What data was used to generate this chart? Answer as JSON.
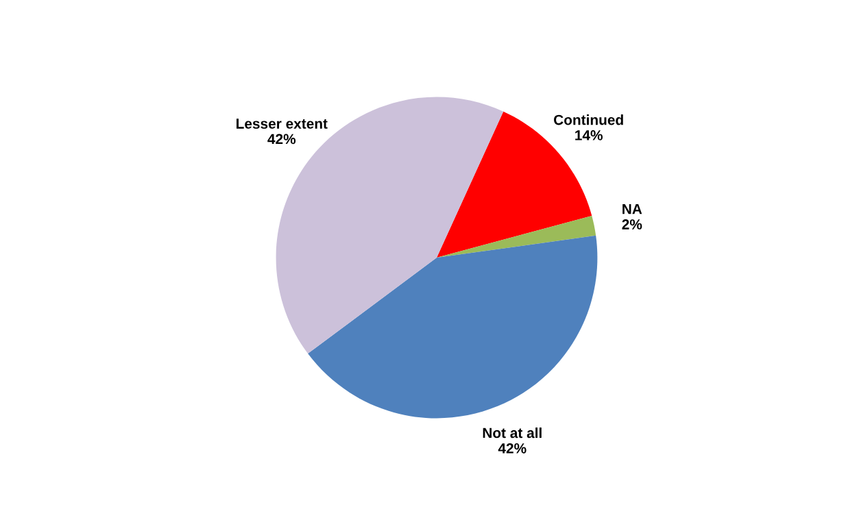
{
  "chart_data": {
    "type": "pie",
    "categories": [
      "Continued",
      "NA",
      "Not at all",
      "Lesser extent"
    ],
    "values": [
      14,
      2,
      42,
      42
    ],
    "value_labels": [
      "14%",
      "2%",
      "42%",
      "42%"
    ],
    "colors": [
      "#ff0000",
      "#9bbb59",
      "#4f81bd",
      "#ccc1da"
    ],
    "legend": false
  }
}
